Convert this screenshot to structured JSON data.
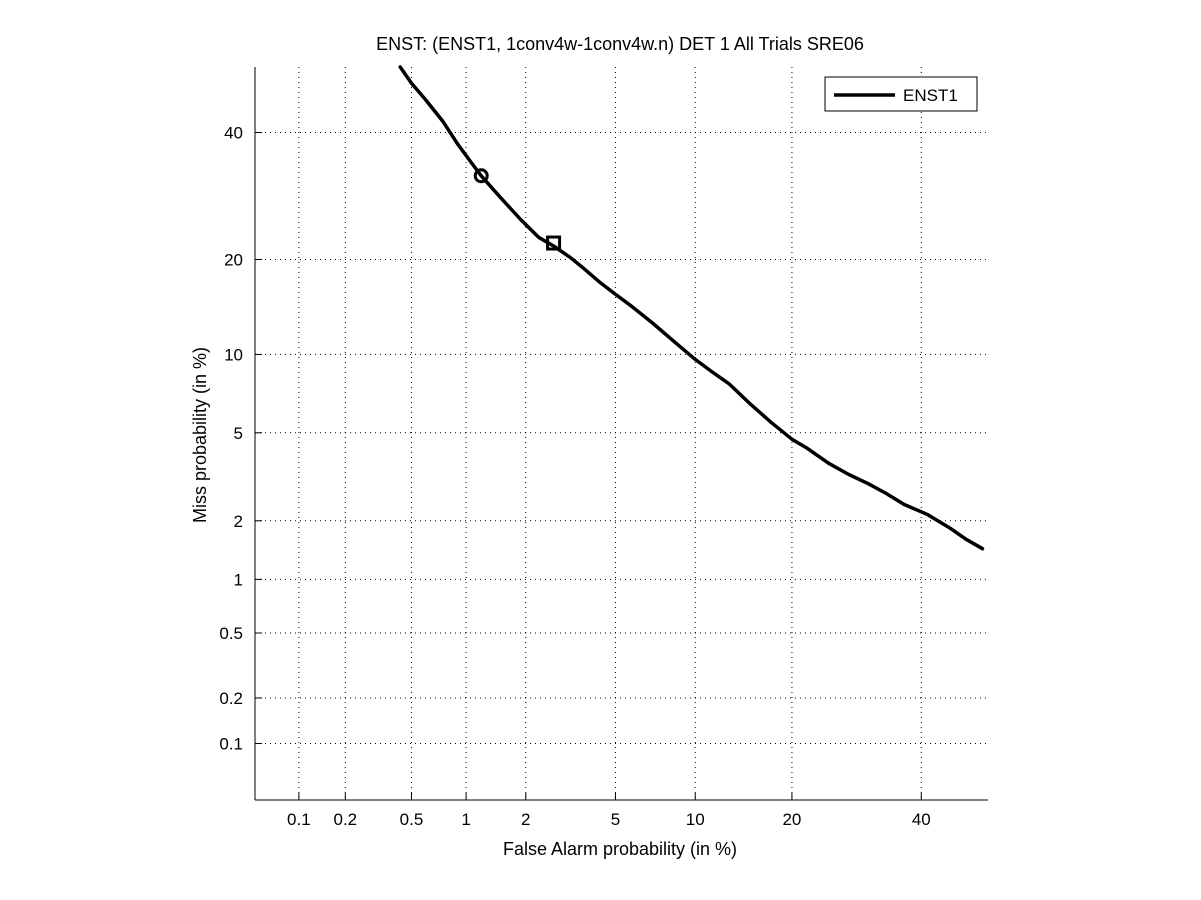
{
  "chart_data": {
    "type": "line",
    "title": "ENST: (ENST1, 1conv4w-1conv4w.n) DET 1 All Trials SRE06",
    "xlabel": "False Alarm probability (in %)",
    "ylabel": "Miss probability (in %)",
    "x_scale": "normal-deviate (probit)",
    "y_scale": "normal-deviate (probit)",
    "xlim": [
      0.05,
      52
    ],
    "ylim": [
      0.04,
      52
    ],
    "x_ticks": [
      0.1,
      0.2,
      0.5,
      1,
      2,
      5,
      10,
      20,
      40
    ],
    "x_tick_labels": [
      "0.1",
      "0.2",
      "0.5",
      "1",
      "2",
      "5",
      "10",
      "20",
      "40"
    ],
    "y_ticks": [
      0.1,
      0.2,
      0.5,
      1,
      2,
      5,
      10,
      20,
      40
    ],
    "y_tick_labels": [
      "0.1",
      "0.2",
      "0.5",
      "1",
      "2",
      "5",
      "10",
      "20",
      "40"
    ],
    "grid": true,
    "legend_position": "top-right",
    "series": [
      {
        "name": "ENST1",
        "color": "#000000",
        "x": [
          0.43,
          0.5,
          0.6,
          0.75,
          0.9,
          1.05,
          1.2,
          1.5,
          1.9,
          2.3,
          2.7,
          3.2,
          3.7,
          4.3,
          5.0,
          5.8,
          7.0,
          8.5,
          10.0,
          11.5,
          13.0,
          15.0,
          17.5,
          20.0,
          22.0,
          25.0,
          28.0,
          31.0,
          34.0,
          37.0,
          41.0,
          45.0,
          48.0,
          51.0
        ],
        "y": [
          52,
          49,
          46,
          42,
          38,
          35,
          32.5,
          29,
          25.5,
          23,
          21.8,
          20.3,
          18.8,
          17.2,
          15.8,
          14.5,
          12.8,
          11.0,
          9.6,
          8.6,
          7.8,
          6.6,
          5.5,
          4.7,
          4.3,
          3.7,
          3.3,
          3.0,
          2.7,
          2.4,
          2.15,
          1.85,
          1.62,
          1.45
        ]
      }
    ],
    "markers": [
      {
        "shape": "circle",
        "x": 1.2,
        "y": 32.5
      },
      {
        "shape": "square",
        "x": 2.7,
        "y": 22.2
      }
    ]
  }
}
